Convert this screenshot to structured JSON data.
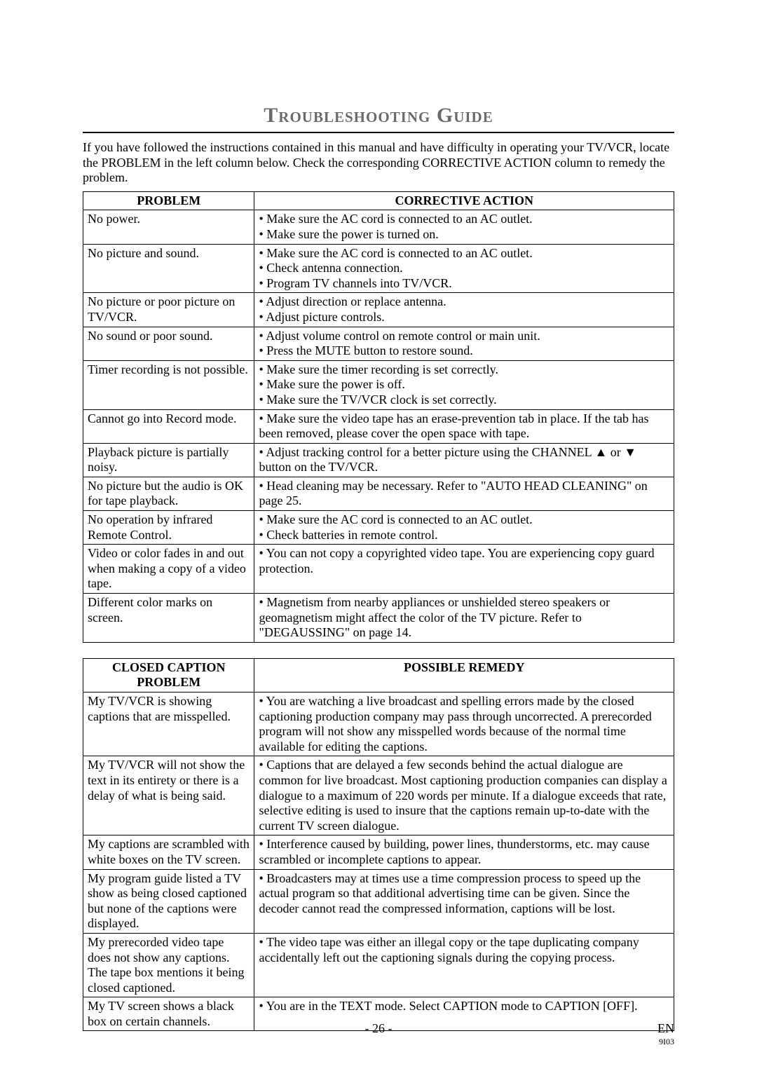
{
  "title": "Troubleshooting Guide",
  "intro": "If you have followed the instructions contained in this manual and have difficulty in operating your TV/VCR, locate the PROBLEM in the left column below. Check the corresponding CORRECTIVE ACTION column to remedy the problem.",
  "table1": {
    "head_problem": "PROBLEM",
    "head_action": "CORRECTIVE ACTION",
    "rows": [
      {
        "problem": "No power.",
        "action": "• Make sure the AC cord is connected to an AC outlet.\n• Make sure the power is turned on."
      },
      {
        "problem": "No picture and sound.",
        "action": "• Make sure the AC cord is connected to an AC outlet.\n• Check antenna connection.\n• Program TV channels into TV/VCR."
      },
      {
        "problem": "No picture or poor picture on TV/VCR.",
        "action": "• Adjust direction or replace antenna.\n• Adjust picture controls."
      },
      {
        "problem": "No sound or poor sound.",
        "action": "• Adjust volume control on remote control or main unit.\n• Press the MUTE button to restore sound."
      },
      {
        "problem": "Timer recording is not possible.",
        "action": "• Make sure the timer recording is set correctly.\n• Make sure the power is off.\n• Make sure the TV/VCR clock is set correctly."
      },
      {
        "problem": "Cannot go into Record mode.",
        "action": "• Make sure the video tape has an erase-prevention tab in place. If the tab has been removed, please cover the open space with tape."
      },
      {
        "problem": "Playback picture is partially noisy.",
        "action": "• Adjust tracking control for a better picture using the CHANNEL ▲ or ▼ button on the TV/VCR."
      },
      {
        "problem": "No picture but the audio is OK for tape playback.",
        "action": "• Head cleaning may be necessary. Refer to \"AUTO HEAD CLEANING\" on page 25."
      },
      {
        "problem": "No operation by infrared Remote Control.",
        "action": "• Make sure the AC cord is connected to an AC outlet.\n• Check batteries in remote control."
      },
      {
        "problem": "Video or color fades in and out when making a copy of a video tape.",
        "action": "• You can not copy a copyrighted video tape. You are experiencing copy guard protection."
      },
      {
        "problem": "Different color marks on screen.",
        "action": "• Magnetism from nearby appliances or unshielded stereo speakers or geomagnetism might affect the color of the TV picture. Refer to \"DEGAUSSING\" on page 14."
      }
    ]
  },
  "table2": {
    "head_problem": "CLOSED CAPTION PROBLEM",
    "head_action": "POSSIBLE REMEDY",
    "rows": [
      {
        "problem": "My TV/VCR is showing captions that are misspelled.",
        "action": "• You are watching a live broadcast and spelling errors made by the closed captioning production company may pass through uncorrected. A prerecorded program will not show any misspelled words because of the normal time available for editing the captions."
      },
      {
        "problem": "My TV/VCR will not show the text in its entirety or there is a delay of what is being said.",
        "action": "• Captions that are delayed a few seconds behind the actual dialogue are common for live broadcast. Most captioning production companies can display a dialogue to a maximum of 220 words per minute. If a dialogue exceeds that rate, selective editing is used to insure that the captions remain up-to-date with the current TV screen dialogue."
      },
      {
        "problem": "My captions are scrambled with white boxes on the TV screen.",
        "action": "• Interference caused by building, power lines, thunderstorms, etc. may cause scrambled or incomplete captions to appear."
      },
      {
        "problem": "My program guide listed a TV show as being closed captioned but none of the captions were displayed.",
        "action": "• Broadcasters may at times use a time compression process to speed up the actual program so that additional advertising time can be given. Since the decoder cannot read the compressed information, captions will be lost."
      },
      {
        "problem": "My prerecorded video tape does not show any captions. The tape box mentions it being closed captioned.",
        "action": "• The video tape was either an illegal copy or the tape duplicating company accidentally left out the captioning signals during the copying process."
      },
      {
        "problem": "My TV screen shows a black box on certain channels.",
        "action": "• You are in the TEXT mode. Select CAPTION mode to CAPTION [OFF]."
      }
    ]
  },
  "footer": {
    "page": "- 26 -",
    "lang": "EN",
    "code": "9I03"
  }
}
